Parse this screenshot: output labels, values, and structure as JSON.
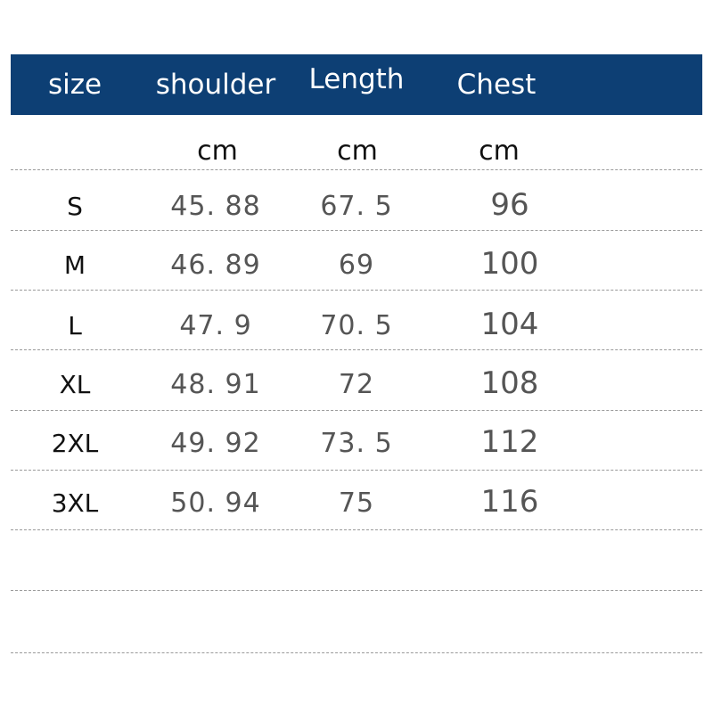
{
  "header": {
    "columns": [
      "size",
      "shoulder",
      "Length",
      "Chest"
    ],
    "background": "#0d3f74"
  },
  "units": [
    "cm",
    "cm",
    "cm"
  ],
  "rows": [
    {
      "size": "S",
      "shoulder": "45. 88",
      "length": "67. 5",
      "chest": "96"
    },
    {
      "size": "M",
      "shoulder": "46. 89",
      "length": "69",
      "chest": "100"
    },
    {
      "size": "L",
      "shoulder": "47. 9",
      "length": "70. 5",
      "chest": "104"
    },
    {
      "size": "XL",
      "shoulder": "48. 91",
      "length": "72",
      "chest": "108"
    },
    {
      "size": "2XL",
      "shoulder": "49. 92",
      "length": "73. 5",
      "chest": "112"
    },
    {
      "size": "3XL",
      "shoulder": "50. 94",
      "length": "75",
      "chest": "116"
    }
  ]
}
